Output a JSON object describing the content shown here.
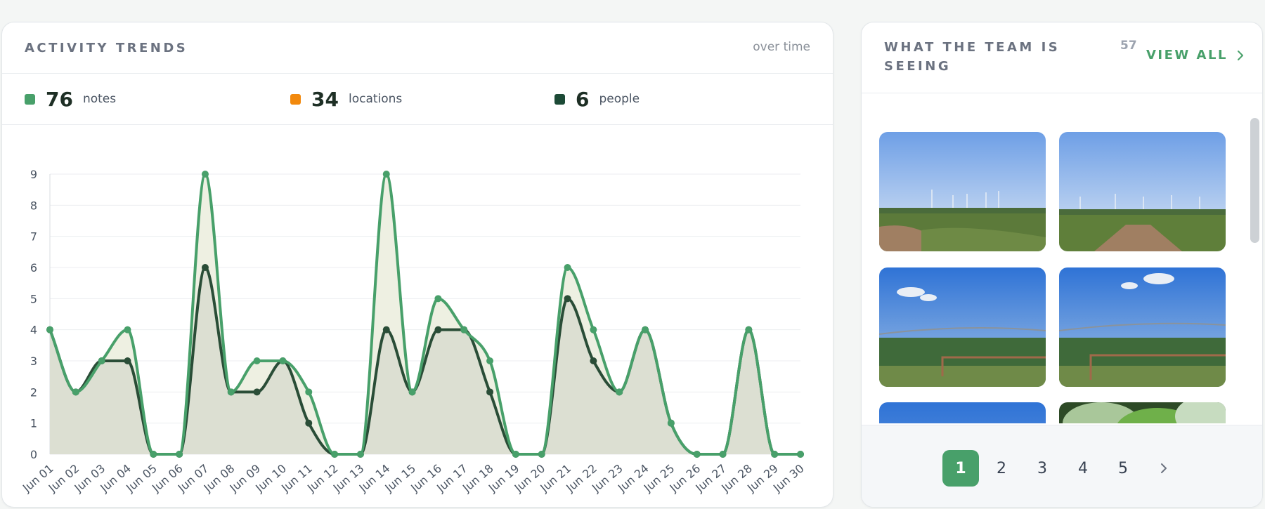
{
  "trends": {
    "title": "ACTIVITY TRENDS",
    "subtitle": "over time",
    "stats": [
      {
        "value": "76",
        "label": "notes",
        "color": "#48a06a"
      },
      {
        "value": "34",
        "label": "locations",
        "color": "#f2890d"
      },
      {
        "value": "6",
        "label": "people",
        "color": "#1c4a36"
      }
    ]
  },
  "chart_data": {
    "type": "area",
    "title": "",
    "xlabel": "",
    "ylabel": "",
    "ylim": [
      0,
      9
    ],
    "yticks": [
      0,
      1,
      2,
      3,
      4,
      5,
      6,
      7,
      8,
      9
    ],
    "grid": true,
    "categories": [
      "Jun 01",
      "Jun 02",
      "Jun 03",
      "Jun 04",
      "Jun 05",
      "Jun 06",
      "Jun 07",
      "Jun 08",
      "Jun 09",
      "Jun 10",
      "Jun 11",
      "Jun 12",
      "Jun 13",
      "Jun 14",
      "Jun 15",
      "Jun 16",
      "Jun 17",
      "Jun 18",
      "Jun 19",
      "Jun 20",
      "Jun 21",
      "Jun 22",
      "Jun 23",
      "Jun 24",
      "Jun 25",
      "Jun 26",
      "Jun 27",
      "Jun 28",
      "Jun 29",
      "Jun 30"
    ],
    "series": [
      {
        "name": "notes",
        "color": "#48a06a",
        "fill": "#eef0e2",
        "values": [
          4,
          2,
          3,
          4,
          0,
          0,
          9,
          2,
          3,
          3,
          2,
          0,
          0,
          9,
          2,
          5,
          4,
          3,
          0,
          0,
          6,
          4,
          2,
          4,
          1,
          0,
          0,
          4,
          0,
          0
        ]
      },
      {
        "name": "people",
        "color": "#2a4d37",
        "fill": "#dcdfd2",
        "values": [
          4,
          2,
          3,
          3,
          0,
          0,
          6,
          2,
          2,
          3,
          1,
          0,
          0,
          4,
          2,
          4,
          4,
          2,
          0,
          0,
          5,
          3,
          2,
          4,
          1,
          0,
          0,
          4,
          0,
          0
        ]
      }
    ]
  },
  "seeing": {
    "title": "WHAT THE TEAM IS SEEING",
    "count": "57",
    "view_all": "VIEW ALL",
    "pages": [
      "1",
      "2",
      "3",
      "4",
      "5"
    ],
    "active_page": "1"
  }
}
